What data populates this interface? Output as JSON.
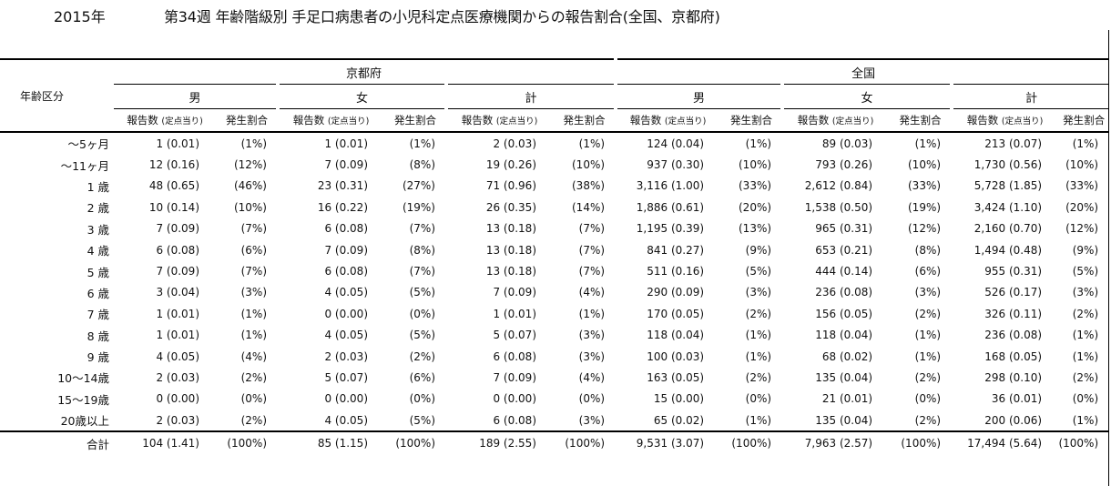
{
  "header": {
    "year": "2015年",
    "title": "第34週 年齢階級別 手足口病患者の小児科定点医療機関からの報告割合(全国、京都府)"
  },
  "table": {
    "age_header": "年齢区分",
    "regions": [
      "京都府",
      "全国"
    ],
    "sexes": [
      "男",
      "女",
      "計"
    ],
    "count_label": "報告数",
    "per_site_label": "(定点当り)",
    "rate_label": "発生割合",
    "rows": [
      {
        "age": "～5ヶ月",
        "kyoto": [
          [
            "1 (0.01)",
            "(1%)"
          ],
          [
            "1 (0.01)",
            "(1%)"
          ],
          [
            "2 (0.03)",
            "(1%)"
          ]
        ],
        "national": [
          [
            "124 (0.04)",
            "(1%)"
          ],
          [
            "89 (0.03)",
            "(1%)"
          ],
          [
            "213 (0.07)",
            "(1%)"
          ]
        ]
      },
      {
        "age": "～11ヶ月",
        "kyoto": [
          [
            "12 (0.16)",
            "(12%)"
          ],
          [
            "7 (0.09)",
            "(8%)"
          ],
          [
            "19 (0.26)",
            "(10%)"
          ]
        ],
        "national": [
          [
            "937 (0.30)",
            "(10%)"
          ],
          [
            "793 (0.26)",
            "(10%)"
          ],
          [
            "1,730 (0.56)",
            "(10%)"
          ]
        ]
      },
      {
        "age": "1 歳",
        "kyoto": [
          [
            "48 (0.65)",
            "(46%)"
          ],
          [
            "23 (0.31)",
            "(27%)"
          ],
          [
            "71 (0.96)",
            "(38%)"
          ]
        ],
        "national": [
          [
            "3,116 (1.00)",
            "(33%)"
          ],
          [
            "2,612 (0.84)",
            "(33%)"
          ],
          [
            "5,728 (1.85)",
            "(33%)"
          ]
        ]
      },
      {
        "age": "2 歳",
        "kyoto": [
          [
            "10 (0.14)",
            "(10%)"
          ],
          [
            "16 (0.22)",
            "(19%)"
          ],
          [
            "26 (0.35)",
            "(14%)"
          ]
        ],
        "national": [
          [
            "1,886 (0.61)",
            "(20%)"
          ],
          [
            "1,538 (0.50)",
            "(19%)"
          ],
          [
            "3,424 (1.10)",
            "(20%)"
          ]
        ]
      },
      {
        "age": "3 歳",
        "kyoto": [
          [
            "7 (0.09)",
            "(7%)"
          ],
          [
            "6 (0.08)",
            "(7%)"
          ],
          [
            "13 (0.18)",
            "(7%)"
          ]
        ],
        "national": [
          [
            "1,195 (0.39)",
            "(13%)"
          ],
          [
            "965 (0.31)",
            "(12%)"
          ],
          [
            "2,160 (0.70)",
            "(12%)"
          ]
        ]
      },
      {
        "age": "4 歳",
        "kyoto": [
          [
            "6 (0.08)",
            "(6%)"
          ],
          [
            "7 (0.09)",
            "(8%)"
          ],
          [
            "13 (0.18)",
            "(7%)"
          ]
        ],
        "national": [
          [
            "841 (0.27)",
            "(9%)"
          ],
          [
            "653 (0.21)",
            "(8%)"
          ],
          [
            "1,494 (0.48)",
            "(9%)"
          ]
        ]
      },
      {
        "age": "5 歳",
        "kyoto": [
          [
            "7 (0.09)",
            "(7%)"
          ],
          [
            "6 (0.08)",
            "(7%)"
          ],
          [
            "13 (0.18)",
            "(7%)"
          ]
        ],
        "national": [
          [
            "511 (0.16)",
            "(5%)"
          ],
          [
            "444 (0.14)",
            "(6%)"
          ],
          [
            "955 (0.31)",
            "(5%)"
          ]
        ]
      },
      {
        "age": "6 歳",
        "kyoto": [
          [
            "3 (0.04)",
            "(3%)"
          ],
          [
            "4 (0.05)",
            "(5%)"
          ],
          [
            "7 (0.09)",
            "(4%)"
          ]
        ],
        "national": [
          [
            "290 (0.09)",
            "(3%)"
          ],
          [
            "236 (0.08)",
            "(3%)"
          ],
          [
            "526 (0.17)",
            "(3%)"
          ]
        ]
      },
      {
        "age": "7 歳",
        "kyoto": [
          [
            "1 (0.01)",
            "(1%)"
          ],
          [
            "0 (0.00)",
            "(0%)"
          ],
          [
            "1 (0.01)",
            "(1%)"
          ]
        ],
        "national": [
          [
            "170 (0.05)",
            "(2%)"
          ],
          [
            "156 (0.05)",
            "(2%)"
          ],
          [
            "326 (0.11)",
            "(2%)"
          ]
        ]
      },
      {
        "age": "8 歳",
        "kyoto": [
          [
            "1 (0.01)",
            "(1%)"
          ],
          [
            "4 (0.05)",
            "(5%)"
          ],
          [
            "5 (0.07)",
            "(3%)"
          ]
        ],
        "national": [
          [
            "118 (0.04)",
            "(1%)"
          ],
          [
            "118 (0.04)",
            "(1%)"
          ],
          [
            "236 (0.08)",
            "(1%)"
          ]
        ]
      },
      {
        "age": "9 歳",
        "kyoto": [
          [
            "4 (0.05)",
            "(4%)"
          ],
          [
            "2 (0.03)",
            "(2%)"
          ],
          [
            "6 (0.08)",
            "(3%)"
          ]
        ],
        "national": [
          [
            "100 (0.03)",
            "(1%)"
          ],
          [
            "68 (0.02)",
            "(1%)"
          ],
          [
            "168 (0.05)",
            "(1%)"
          ]
        ]
      },
      {
        "age": "10～14歳",
        "kyoto": [
          [
            "2 (0.03)",
            "(2%)"
          ],
          [
            "5 (0.07)",
            "(6%)"
          ],
          [
            "7 (0.09)",
            "(4%)"
          ]
        ],
        "national": [
          [
            "163 (0.05)",
            "(2%)"
          ],
          [
            "135 (0.04)",
            "(2%)"
          ],
          [
            "298 (0.10)",
            "(2%)"
          ]
        ]
      },
      {
        "age": "15～19歳",
        "kyoto": [
          [
            "0 (0.00)",
            "(0%)"
          ],
          [
            "0 (0.00)",
            "(0%)"
          ],
          [
            "0 (0.00)",
            "(0%)"
          ]
        ],
        "national": [
          [
            "15 (0.00)",
            "(0%)"
          ],
          [
            "21 (0.01)",
            "(0%)"
          ],
          [
            "36 (0.01)",
            "(0%)"
          ]
        ]
      },
      {
        "age": "20歳以上",
        "kyoto": [
          [
            "2 (0.03)",
            "(2%)"
          ],
          [
            "4 (0.05)",
            "(5%)"
          ],
          [
            "6 (0.08)",
            "(3%)"
          ]
        ],
        "national": [
          [
            "65 (0.02)",
            "(1%)"
          ],
          [
            "135 (0.04)",
            "(2%)"
          ],
          [
            "200 (0.06)",
            "(1%)"
          ]
        ]
      }
    ],
    "total": {
      "age": "合計",
      "kyoto": [
        [
          "104 (1.41)",
          "(100%)"
        ],
        [
          "85 (1.15)",
          "(100%)"
        ],
        [
          "189 (2.55)",
          "(100%)"
        ]
      ],
      "national": [
        [
          "9,531 (3.07)",
          "(100%)"
        ],
        [
          "7,963 (2.57)",
          "(100%)"
        ],
        [
          "17,494 (5.64)",
          "(100%)"
        ]
      ]
    }
  }
}
